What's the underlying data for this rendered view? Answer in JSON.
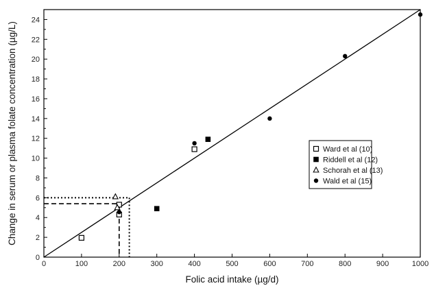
{
  "chart_data": {
    "type": "scatter",
    "xlabel": "Folic acid intake (µg/d)",
    "ylabel": "Change in serum or plasma folate concentration (µg/L)",
    "xlim": [
      0,
      1000
    ],
    "ylim": [
      0,
      25
    ],
    "xticks": [
      0,
      100,
      200,
      300,
      400,
      500,
      600,
      700,
      800,
      900,
      1000
    ],
    "yticks": [
      0,
      2,
      4,
      6,
      8,
      10,
      12,
      14,
      16,
      18,
      20,
      22,
      24
    ],
    "grid": false,
    "legend_position": "right",
    "series": [
      {
        "name": "Ward et al (10)",
        "marker": "open-square",
        "points": [
          [
            100,
            1.95
          ],
          [
            200,
            4.3
          ],
          [
            200,
            5.3
          ],
          [
            400,
            10.9
          ]
        ]
      },
      {
        "name": "Riddell et al (12)",
        "marker": "filled-square",
        "points": [
          [
            300,
            4.9
          ],
          [
            436,
            11.9
          ]
        ]
      },
      {
        "name": "Schorah et al (13)",
        "marker": "open-triangle",
        "points": [
          [
            190,
            6.1
          ],
          [
            195,
            5.0
          ]
        ]
      },
      {
        "name": "Wald et al (15)",
        "marker": "filled-circle",
        "points": [
          [
            200,
            4.55
          ],
          [
            400,
            11.5
          ],
          [
            600,
            14.0
          ],
          [
            800,
            20.3
          ],
          [
            1000,
            24.5
          ]
        ]
      }
    ],
    "regression_line": {
      "from": [
        0,
        0
      ],
      "to": [
        1000,
        25
      ]
    },
    "reference_lines": [
      {
        "style": "dashed",
        "x": 200,
        "y": 5.4
      },
      {
        "style": "dotted",
        "x": 227,
        "y": 6.0
      }
    ]
  }
}
